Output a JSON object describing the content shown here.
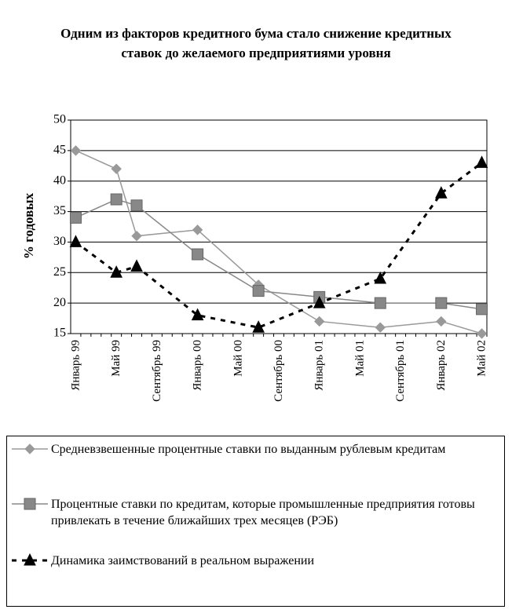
{
  "chart_data": {
    "type": "line",
    "title": "Одним из факторов кредитного бума стало снижение кредитных ставок до желаемого предприятиями уровня",
    "y_label": "% годовых",
    "categories": [
      "Январь 99",
      null,
      null,
      null,
      "Май 99",
      null,
      null,
      null,
      "Сентябрь 99",
      null,
      null,
      null,
      "Январь 00",
      null,
      null,
      null,
      "Май 00",
      null,
      null,
      null,
      "Сентябрь 00",
      null,
      null,
      null,
      "Январь 01",
      null,
      null,
      null,
      "Май 01",
      null,
      null,
      null,
      "Сентябрь 01",
      null,
      null,
      null,
      "Январь 02",
      null,
      null,
      null,
      "Май 02"
    ],
    "series": [
      {
        "name": "Средневзвешенные процентные ставки по выданным рублевым кредитам",
        "color": "#999999",
        "marker": "diamond",
        "dashed": false,
        "values": [
          45,
          null,
          null,
          null,
          42,
          null,
          31,
          null,
          null,
          null,
          null,
          null,
          32,
          null,
          null,
          null,
          null,
          null,
          23,
          null,
          null,
          null,
          null,
          null,
          17,
          null,
          null,
          null,
          null,
          null,
          16,
          null,
          null,
          null,
          null,
          null,
          17,
          null,
          null,
          null,
          15
        ]
      },
      {
        "name": "Процентные ставки по кредитам, которые промышленные предприятия готовы привлекать в течение ближайших трех месяцев (РЭБ)",
        "color": "#888888",
        "marker": "square",
        "dashed": false,
        "values": [
          34,
          null,
          null,
          null,
          37,
          null,
          36,
          null,
          null,
          null,
          null,
          null,
          28,
          null,
          null,
          null,
          null,
          null,
          22,
          null,
          null,
          null,
          null,
          null,
          21,
          null,
          null,
          null,
          null,
          null,
          20,
          null,
          null,
          null,
          null,
          null,
          20,
          null,
          null,
          null,
          19
        ]
      },
      {
        "name": "Динамика заимствований в реальном выражении",
        "color": "#000000",
        "marker": "triangle",
        "dashed": true,
        "values": [
          30,
          null,
          null,
          null,
          25,
          null,
          26,
          null,
          null,
          null,
          null,
          null,
          18,
          null,
          null,
          null,
          null,
          null,
          16,
          null,
          null,
          null,
          null,
          null,
          20,
          null,
          null,
          null,
          null,
          null,
          24,
          null,
          null,
          null,
          null,
          null,
          38,
          null,
          null,
          null,
          43
        ]
      }
    ],
    "ylim": [
      15,
      50
    ],
    "yticks": [
      15,
      20,
      25,
      30,
      35,
      40,
      45,
      50
    ],
    "grid": true
  }
}
